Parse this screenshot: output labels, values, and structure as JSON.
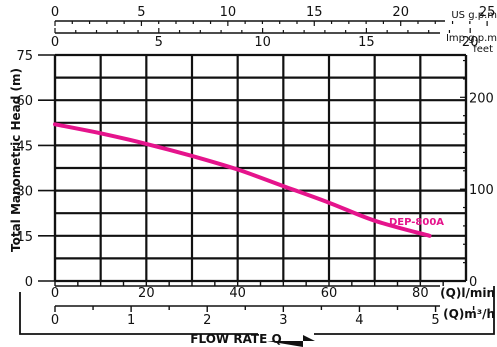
{
  "chart_data": {
    "type": "line",
    "title": "",
    "xlabel": "FLOW RATE Q",
    "ylabel": "Total Manometric Head (m)",
    "xlim": [
      0,
      90
    ],
    "ylim": [
      0,
      75
    ],
    "grid": true,
    "x_ticks": [
      0,
      20,
      40,
      60,
      80
    ],
    "x_unit": "(Q)l/min",
    "y_ticks": [
      0,
      15,
      30,
      45,
      60,
      75
    ],
    "series": [
      {
        "name": "DEP-800A",
        "color": "#e5148c",
        "x": [
          0,
          10,
          20,
          30,
          40,
          50,
          60,
          70,
          82
        ],
        "y": [
          52,
          49,
          45.5,
          41.5,
          37,
          31.5,
          26,
          20,
          15
        ]
      }
    ],
    "secondary_axes": {
      "top_usgpm": {
        "label": "US g.p.m",
        "ticks": [
          0,
          5,
          10,
          15,
          20,
          25
        ],
        "lpm_per_unit": 3.785
      },
      "top_impgpm": {
        "label": "Imp g.p.m",
        "ticks": [
          0,
          5,
          10,
          15,
          20
        ],
        "lpm_per_unit": 4.546
      },
      "bottom_m3h": {
        "label": "(Q)m³/h",
        "ticks": [
          0,
          1,
          2,
          3,
          4,
          5
        ],
        "lpm_per_unit": 16.667
      },
      "right_feet": {
        "label": "feet",
        "ticks": [
          0,
          100,
          200
        ],
        "m_per_unit": 0.3048
      }
    }
  }
}
